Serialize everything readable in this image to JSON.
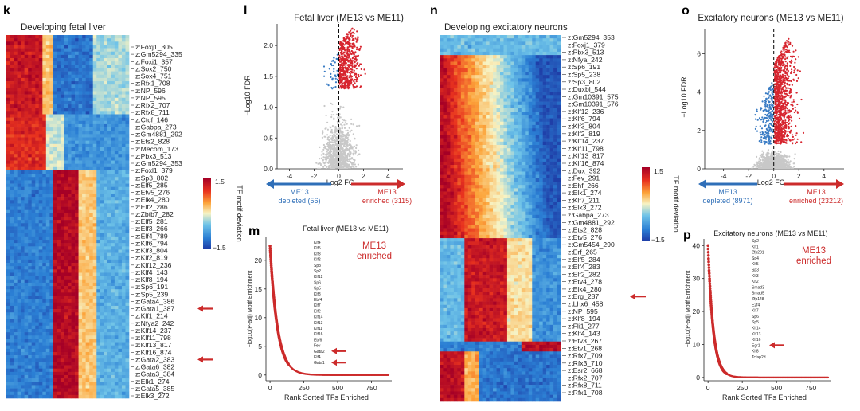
{
  "panels": {
    "k": {
      "label": "k",
      "title": "Developing fetal liver",
      "genes": [
        "z:Foxj1_305",
        "z:Gm5294_335",
        "z:Foxj1_357",
        "z:Sox2_750",
        "z:Sox4_751",
        "z:Rfx1_708",
        "z:NP_596",
        "z:NP_595",
        "z:Rfx2_707",
        "z:Rfx8_711",
        "z:Ctcf_146",
        "z:Gabpa_273",
        "z:Gm4881_292",
        "z:Ets2_828",
        "z:Mecom_173",
        "z:Pbx3_513",
        "z:Gm5294_353",
        "z:Foxl1_379",
        "z:Sp3_802",
        "z:Elf5_285",
        "z:Etv5_276",
        "z:Elk4_280",
        "z:Elf2_286",
        "z:Zbtb7_282",
        "z:Elf5_281",
        "z:Elf3_266",
        "z:Elf4_789",
        "z:Klf6_794",
        "z:Klf3_804",
        "z:Klf2_819",
        "z:Klf12_236",
        "z:Klf4_143",
        "z:Klf8_194",
        "z:Sp6_191",
        "z:Sp5_239",
        "z:Gata4_386",
        "z:Gata1_387",
        "z:Klf1_214",
        "z:Nfya2_242",
        "z:Klf14_237",
        "z:Klf11_798",
        "z:Klf13_817",
        "z:Klf16_874",
        "z:Gata2_383",
        "z:Gata6_382",
        "z:Gata3_384",
        "z:Elk1_274",
        "z:Gata5_385",
        "z:Elk3_272"
      ],
      "arrow_genes": [
        "z:Gata1_387",
        "z:Gata2_383"
      ]
    },
    "colorbar": {
      "max": "1.5",
      "min": "−1.5",
      "label": "TF motif deviation"
    },
    "l": {
      "label": "l",
      "title": "Fetal liver (ME13 vs ME11)",
      "depleted_label": "ME13",
      "depleted_count": "depleted (56)",
      "enriched_label": "ME13",
      "enriched_count": "enriched (3115)"
    },
    "m": {
      "label": "m",
      "title": "Fetal liver (ME13 vs ME11)",
      "annotation": [
        "ME13",
        "enriched"
      ],
      "tf_list": [
        "Klf4",
        "Klf5",
        "Klf3",
        "Klf2",
        "Sp3",
        "Sp2",
        "Klf12",
        "Sp6",
        "Sp5",
        "Klf8",
        "Ebf4",
        "Klf7",
        "Elf2",
        "Klf14",
        "Klf13",
        "Klf11",
        "Klf16",
        "Ebf6",
        "Fev",
        "Gata2",
        "Elf4",
        "Gata1"
      ],
      "arrows_at": [
        "Gata2",
        "Gata1"
      ]
    },
    "n": {
      "label": "n",
      "title": "Developing excitatory neurons",
      "genes": [
        "z:Gm5294_353",
        "z:Foxj1_379",
        "z:Pbx3_513",
        "z:Nfya_242",
        "z:Sp6_191",
        "z:Sp5_238",
        "z:Sp3_802",
        "z:Duxbl_544",
        "z:Gm10391_575",
        "z:Gm10391_576",
        "z:Klf12_236",
        "z:Klf6_794",
        "z:Klf3_804",
        "z:Klf2_819",
        "z:Klf14_237",
        "z:Klf11_798",
        "z:Klf13_817",
        "z:Klf16_874",
        "z:Dux_392",
        "z:Fev_291",
        "z:Ehf_266",
        "z:Elk1_274",
        "z:Klf7_211",
        "z:Elk3_272",
        "z:Gabpa_273",
        "z:Gm4881_292",
        "z:Ets2_828",
        "z:Etv5_276",
        "z:Gm5454_290",
        "z:Erf_265",
        "z:Elf5_284",
        "z:Elf4_283",
        "z:Elf2_282",
        "z:Etv4_278",
        "z:Elk4_280",
        "z:Erg_287",
        "z:Lhx6_458",
        "z:NP_595",
        "z:Klf8_194",
        "z:Fli1_277",
        "z:Klf4_143",
        "z:Etv3_267",
        "z:Etv1_268",
        "z:Rfx7_709",
        "z:Rfx3_710",
        "z:Esr2_668",
        "z:Rfx2_707",
        "z:Rfx8_711",
        "z:Rfx1_708"
      ],
      "arrow_genes": [
        "z:Erg_287"
      ]
    },
    "o": {
      "label": "o",
      "title": "Excitatory neurons (ME13 vs ME11)",
      "depleted_label": "ME13",
      "depleted_count": "depleted (8971)",
      "enriched_label": "ME13",
      "enriched_count": "enriched (23212)"
    },
    "p": {
      "label": "p",
      "title": "Excitatory neurons (ME13 vs ME11)",
      "annotation": [
        "ME13",
        "enriched"
      ],
      "tf_list": [
        "Sp2",
        "Klf1",
        "Zfp281",
        "Sp4",
        "Klf5",
        "Sp3",
        "Klf3",
        "Klf2",
        "Smad3",
        "Smad5",
        "Zfp148",
        "E2f4",
        "Klf7",
        "Sp6",
        "Sp5",
        "Klf14",
        "Klf13",
        "Klf16",
        "Egr1",
        "Klf8",
        "Tcfap2d"
      ],
      "arrows_at": [
        "Egr1"
      ]
    }
  },
  "chart_data": [
    {
      "type": "scatter",
      "panel": "l",
      "title": "Fetal liver (ME13 vs ME11)",
      "xlabel": "Log2 FC",
      "ylabel": "−Log10 FDR",
      "xlim": [
        -5,
        5.2
      ],
      "ylim": [
        0,
        2.35
      ],
      "xticks": [
        -4,
        -2,
        0,
        2,
        4
      ],
      "yticks": [
        0.0,
        0.5,
        1.0,
        1.5,
        2.0
      ],
      "significance_threshold": 1.3,
      "series": [
        {
          "name": "depleted",
          "count": 56,
          "color": "#3a7cc4"
        },
        {
          "name": "enriched",
          "count": 3115,
          "color": "#d7252f"
        },
        {
          "name": "not significant",
          "color": "#c8c8c8"
        }
      ]
    },
    {
      "type": "scatter",
      "panel": "m",
      "title": "Fetal liver (ME13 vs ME11)",
      "xlabel": "Rank Sorted TFs Enriched",
      "ylabel": "−log10(P-adj) Motif Enrichment",
      "xlim": [
        -30,
        900
      ],
      "ylim": [
        -1,
        24
      ],
      "xticks": [
        0,
        250,
        500,
        750
      ],
      "yticks": [
        0,
        5,
        10,
        15,
        20
      ],
      "top_value": 22.5,
      "n_tfs": 880
    },
    {
      "type": "scatter",
      "panel": "o",
      "title": "Excitatory neurons (ME13 vs ME11)",
      "xlabel": "Log2 FC",
      "ylabel": "−Log10 FDR",
      "xlim": [
        -5.5,
        5.6
      ],
      "ylim": [
        0,
        7.3
      ],
      "xticks": [
        -4,
        -2,
        0,
        2,
        4
      ],
      "yticks": [
        0,
        2,
        4,
        6
      ],
      "significance_threshold": 1.3,
      "series": [
        {
          "name": "depleted",
          "count": 8971,
          "color": "#3a7cc4"
        },
        {
          "name": "enriched",
          "count": 23212,
          "color": "#d7252f"
        },
        {
          "name": "not significant",
          "color": "#c8c8c8"
        }
      ]
    },
    {
      "type": "scatter",
      "panel": "p",
      "title": "Excitatory neurons (ME13 vs ME11)",
      "xlabel": "Rank Sorted TFs Enriched",
      "ylabel": "−log10(P-adj) Motif Enrichment",
      "xlim": [
        -30,
        900
      ],
      "ylim": [
        -1,
        42
      ],
      "xticks": [
        0,
        250,
        500,
        750
      ],
      "yticks": [
        0,
        10,
        20,
        30,
        40
      ],
      "top_value": 40,
      "n_tfs": 880
    }
  ],
  "colors": {
    "red": "#cc2b2b",
    "blue": "#2f6fb8",
    "grey": "#c8c8c8"
  }
}
